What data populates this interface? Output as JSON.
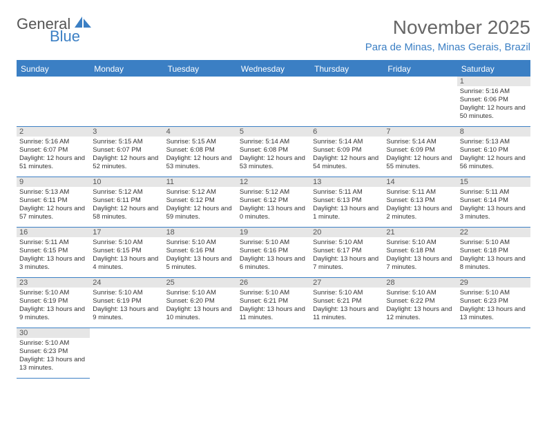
{
  "logo": {
    "general": "General",
    "blue": "Blue"
  },
  "title": "November 2025",
  "location": "Para de Minas, Minas Gerais, Brazil",
  "colors": {
    "header_bg": "#3b7fc4",
    "header_text": "#ffffff",
    "daynum_bg": "#e6e6e6",
    "border": "#3b7fc4",
    "logo_blue": "#3b7fc4",
    "logo_gray": "#555555"
  },
  "weekdays": [
    "Sunday",
    "Monday",
    "Tuesday",
    "Wednesday",
    "Thursday",
    "Friday",
    "Saturday"
  ],
  "weeks": [
    [
      null,
      null,
      null,
      null,
      null,
      null,
      {
        "n": "1",
        "sr": "Sunrise: 5:16 AM",
        "ss": "Sunset: 6:06 PM",
        "dl": "Daylight: 12 hours and 50 minutes."
      }
    ],
    [
      {
        "n": "2",
        "sr": "Sunrise: 5:16 AM",
        "ss": "Sunset: 6:07 PM",
        "dl": "Daylight: 12 hours and 51 minutes."
      },
      {
        "n": "3",
        "sr": "Sunrise: 5:15 AM",
        "ss": "Sunset: 6:07 PM",
        "dl": "Daylight: 12 hours and 52 minutes."
      },
      {
        "n": "4",
        "sr": "Sunrise: 5:15 AM",
        "ss": "Sunset: 6:08 PM",
        "dl": "Daylight: 12 hours and 53 minutes."
      },
      {
        "n": "5",
        "sr": "Sunrise: 5:14 AM",
        "ss": "Sunset: 6:08 PM",
        "dl": "Daylight: 12 hours and 53 minutes."
      },
      {
        "n": "6",
        "sr": "Sunrise: 5:14 AM",
        "ss": "Sunset: 6:09 PM",
        "dl": "Daylight: 12 hours and 54 minutes."
      },
      {
        "n": "7",
        "sr": "Sunrise: 5:14 AM",
        "ss": "Sunset: 6:09 PM",
        "dl": "Daylight: 12 hours and 55 minutes."
      },
      {
        "n": "8",
        "sr": "Sunrise: 5:13 AM",
        "ss": "Sunset: 6:10 PM",
        "dl": "Daylight: 12 hours and 56 minutes."
      }
    ],
    [
      {
        "n": "9",
        "sr": "Sunrise: 5:13 AM",
        "ss": "Sunset: 6:11 PM",
        "dl": "Daylight: 12 hours and 57 minutes."
      },
      {
        "n": "10",
        "sr": "Sunrise: 5:12 AM",
        "ss": "Sunset: 6:11 PM",
        "dl": "Daylight: 12 hours and 58 minutes."
      },
      {
        "n": "11",
        "sr": "Sunrise: 5:12 AM",
        "ss": "Sunset: 6:12 PM",
        "dl": "Daylight: 12 hours and 59 minutes."
      },
      {
        "n": "12",
        "sr": "Sunrise: 5:12 AM",
        "ss": "Sunset: 6:12 PM",
        "dl": "Daylight: 13 hours and 0 minutes."
      },
      {
        "n": "13",
        "sr": "Sunrise: 5:11 AM",
        "ss": "Sunset: 6:13 PM",
        "dl": "Daylight: 13 hours and 1 minute."
      },
      {
        "n": "14",
        "sr": "Sunrise: 5:11 AM",
        "ss": "Sunset: 6:13 PM",
        "dl": "Daylight: 13 hours and 2 minutes."
      },
      {
        "n": "15",
        "sr": "Sunrise: 5:11 AM",
        "ss": "Sunset: 6:14 PM",
        "dl": "Daylight: 13 hours and 3 minutes."
      }
    ],
    [
      {
        "n": "16",
        "sr": "Sunrise: 5:11 AM",
        "ss": "Sunset: 6:15 PM",
        "dl": "Daylight: 13 hours and 3 minutes."
      },
      {
        "n": "17",
        "sr": "Sunrise: 5:10 AM",
        "ss": "Sunset: 6:15 PM",
        "dl": "Daylight: 13 hours and 4 minutes."
      },
      {
        "n": "18",
        "sr": "Sunrise: 5:10 AM",
        "ss": "Sunset: 6:16 PM",
        "dl": "Daylight: 13 hours and 5 minutes."
      },
      {
        "n": "19",
        "sr": "Sunrise: 5:10 AM",
        "ss": "Sunset: 6:16 PM",
        "dl": "Daylight: 13 hours and 6 minutes."
      },
      {
        "n": "20",
        "sr": "Sunrise: 5:10 AM",
        "ss": "Sunset: 6:17 PM",
        "dl": "Daylight: 13 hours and 7 minutes."
      },
      {
        "n": "21",
        "sr": "Sunrise: 5:10 AM",
        "ss": "Sunset: 6:18 PM",
        "dl": "Daylight: 13 hours and 7 minutes."
      },
      {
        "n": "22",
        "sr": "Sunrise: 5:10 AM",
        "ss": "Sunset: 6:18 PM",
        "dl": "Daylight: 13 hours and 8 minutes."
      }
    ],
    [
      {
        "n": "23",
        "sr": "Sunrise: 5:10 AM",
        "ss": "Sunset: 6:19 PM",
        "dl": "Daylight: 13 hours and 9 minutes."
      },
      {
        "n": "24",
        "sr": "Sunrise: 5:10 AM",
        "ss": "Sunset: 6:19 PM",
        "dl": "Daylight: 13 hours and 9 minutes."
      },
      {
        "n": "25",
        "sr": "Sunrise: 5:10 AM",
        "ss": "Sunset: 6:20 PM",
        "dl": "Daylight: 13 hours and 10 minutes."
      },
      {
        "n": "26",
        "sr": "Sunrise: 5:10 AM",
        "ss": "Sunset: 6:21 PM",
        "dl": "Daylight: 13 hours and 11 minutes."
      },
      {
        "n": "27",
        "sr": "Sunrise: 5:10 AM",
        "ss": "Sunset: 6:21 PM",
        "dl": "Daylight: 13 hours and 11 minutes."
      },
      {
        "n": "28",
        "sr": "Sunrise: 5:10 AM",
        "ss": "Sunset: 6:22 PM",
        "dl": "Daylight: 13 hours and 12 minutes."
      },
      {
        "n": "29",
        "sr": "Sunrise: 5:10 AM",
        "ss": "Sunset: 6:23 PM",
        "dl": "Daylight: 13 hours and 13 minutes."
      }
    ],
    [
      {
        "n": "30",
        "sr": "Sunrise: 5:10 AM",
        "ss": "Sunset: 6:23 PM",
        "dl": "Daylight: 13 hours and 13 minutes."
      },
      null,
      null,
      null,
      null,
      null,
      null
    ]
  ]
}
